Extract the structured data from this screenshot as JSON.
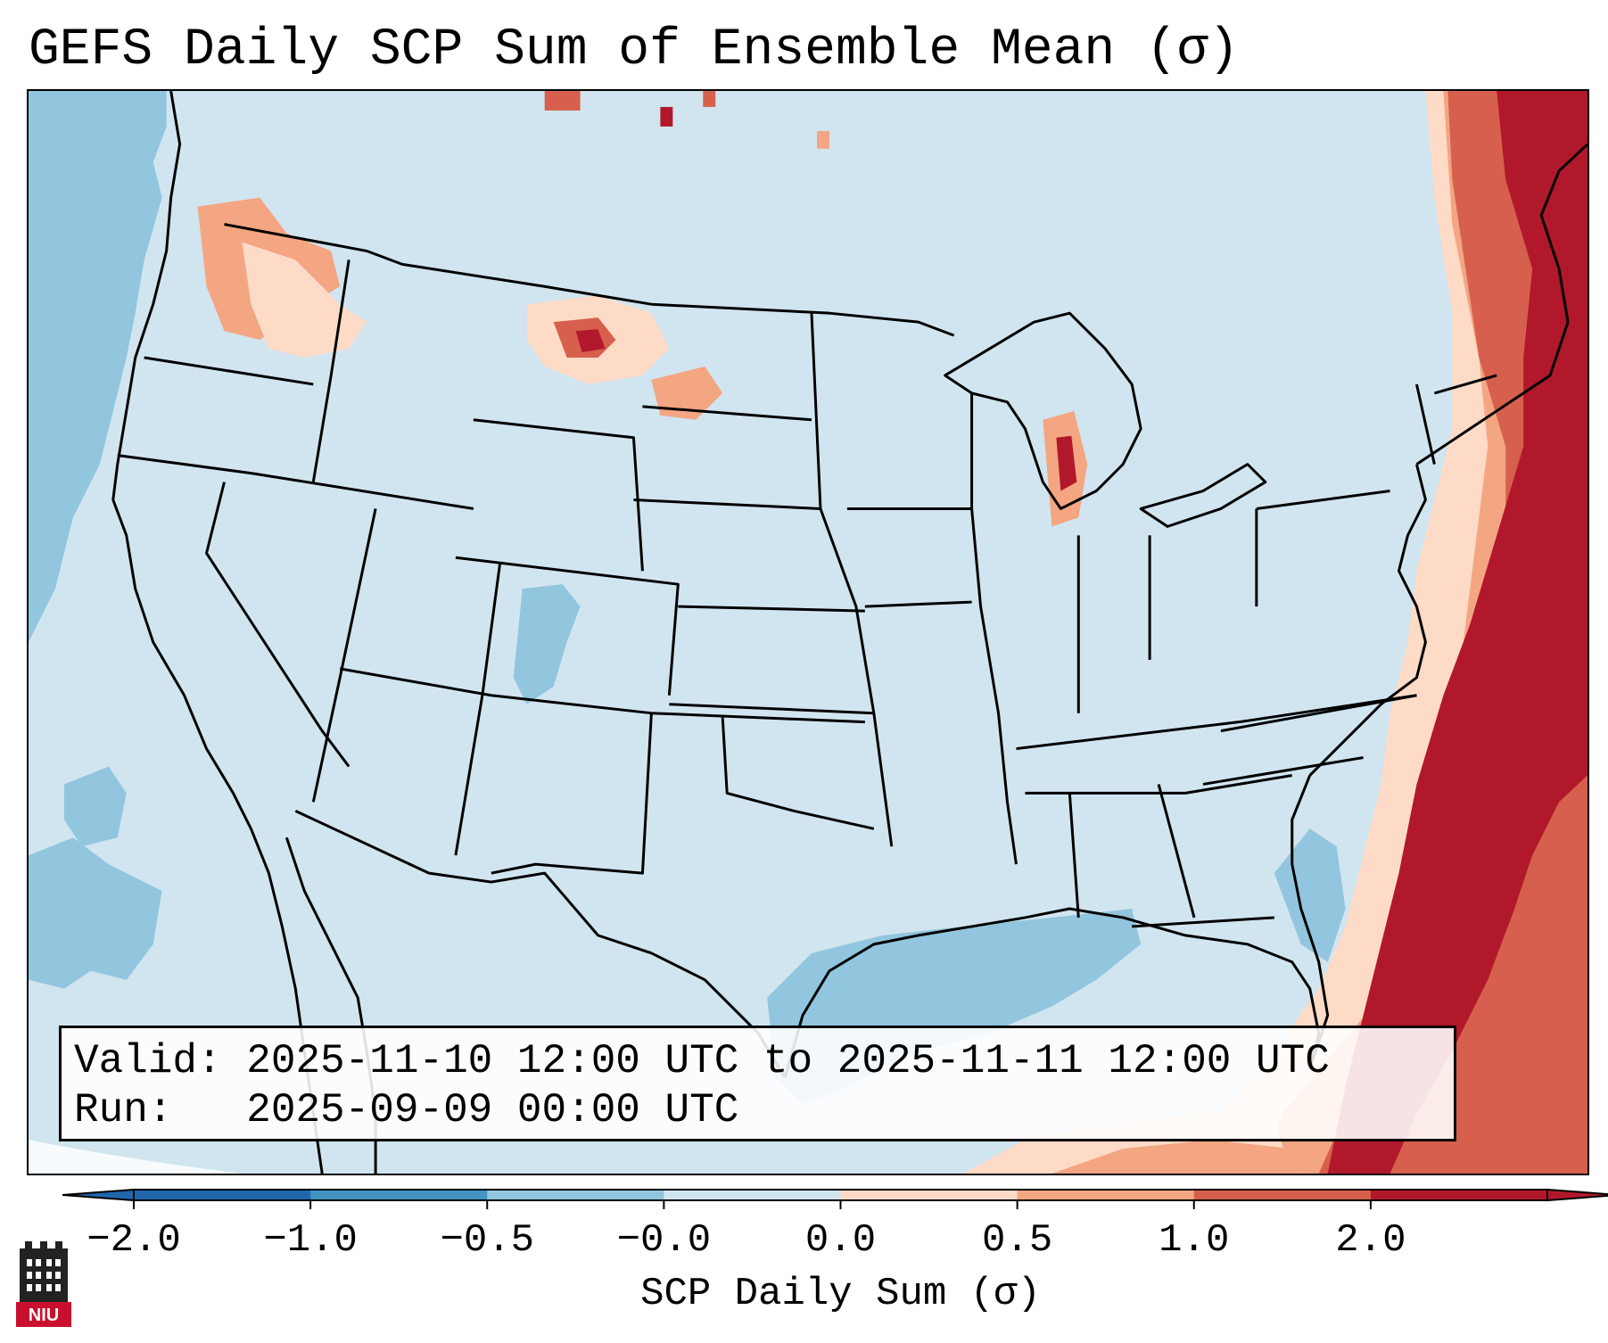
{
  "title": "GEFS Daily SCP Sum of Ensemble Mean (σ)",
  "info": {
    "valid_line": "Valid: 2025-11-10 12:00 UTC to 2025-11-11 12:00 UTC",
    "run_line": "Run:   2025-09-09 00:00 UTC"
  },
  "colorbar": {
    "label": "SCP Daily Sum (σ)",
    "ticks": [
      "−2.0",
      "−1.0",
      "−0.5",
      "−0.0",
      "0.0",
      "0.5",
      "1.0",
      "2.0"
    ],
    "colors": [
      "#2166ac",
      "#4393c3",
      "#92c5de",
      "#d1e5f0",
      "#fddbc7",
      "#f4a582",
      "#d6604d",
      "#b2182b"
    ],
    "under_color": "#2166ac",
    "over_color": "#b2182b"
  },
  "logo": {
    "text": "NIU",
    "colors": {
      "red": "#c8102e",
      "dark": "#222222"
    }
  },
  "map": {
    "colors": {
      "background": "#d1e5f0",
      "ocean_negative": "#92c5de",
      "weak_positive": "#fddbc7",
      "moderate_positive": "#f4a582",
      "strong_positive": "#d6604d",
      "very_strong_positive": "#b2182b",
      "lines": "#000000"
    }
  }
}
